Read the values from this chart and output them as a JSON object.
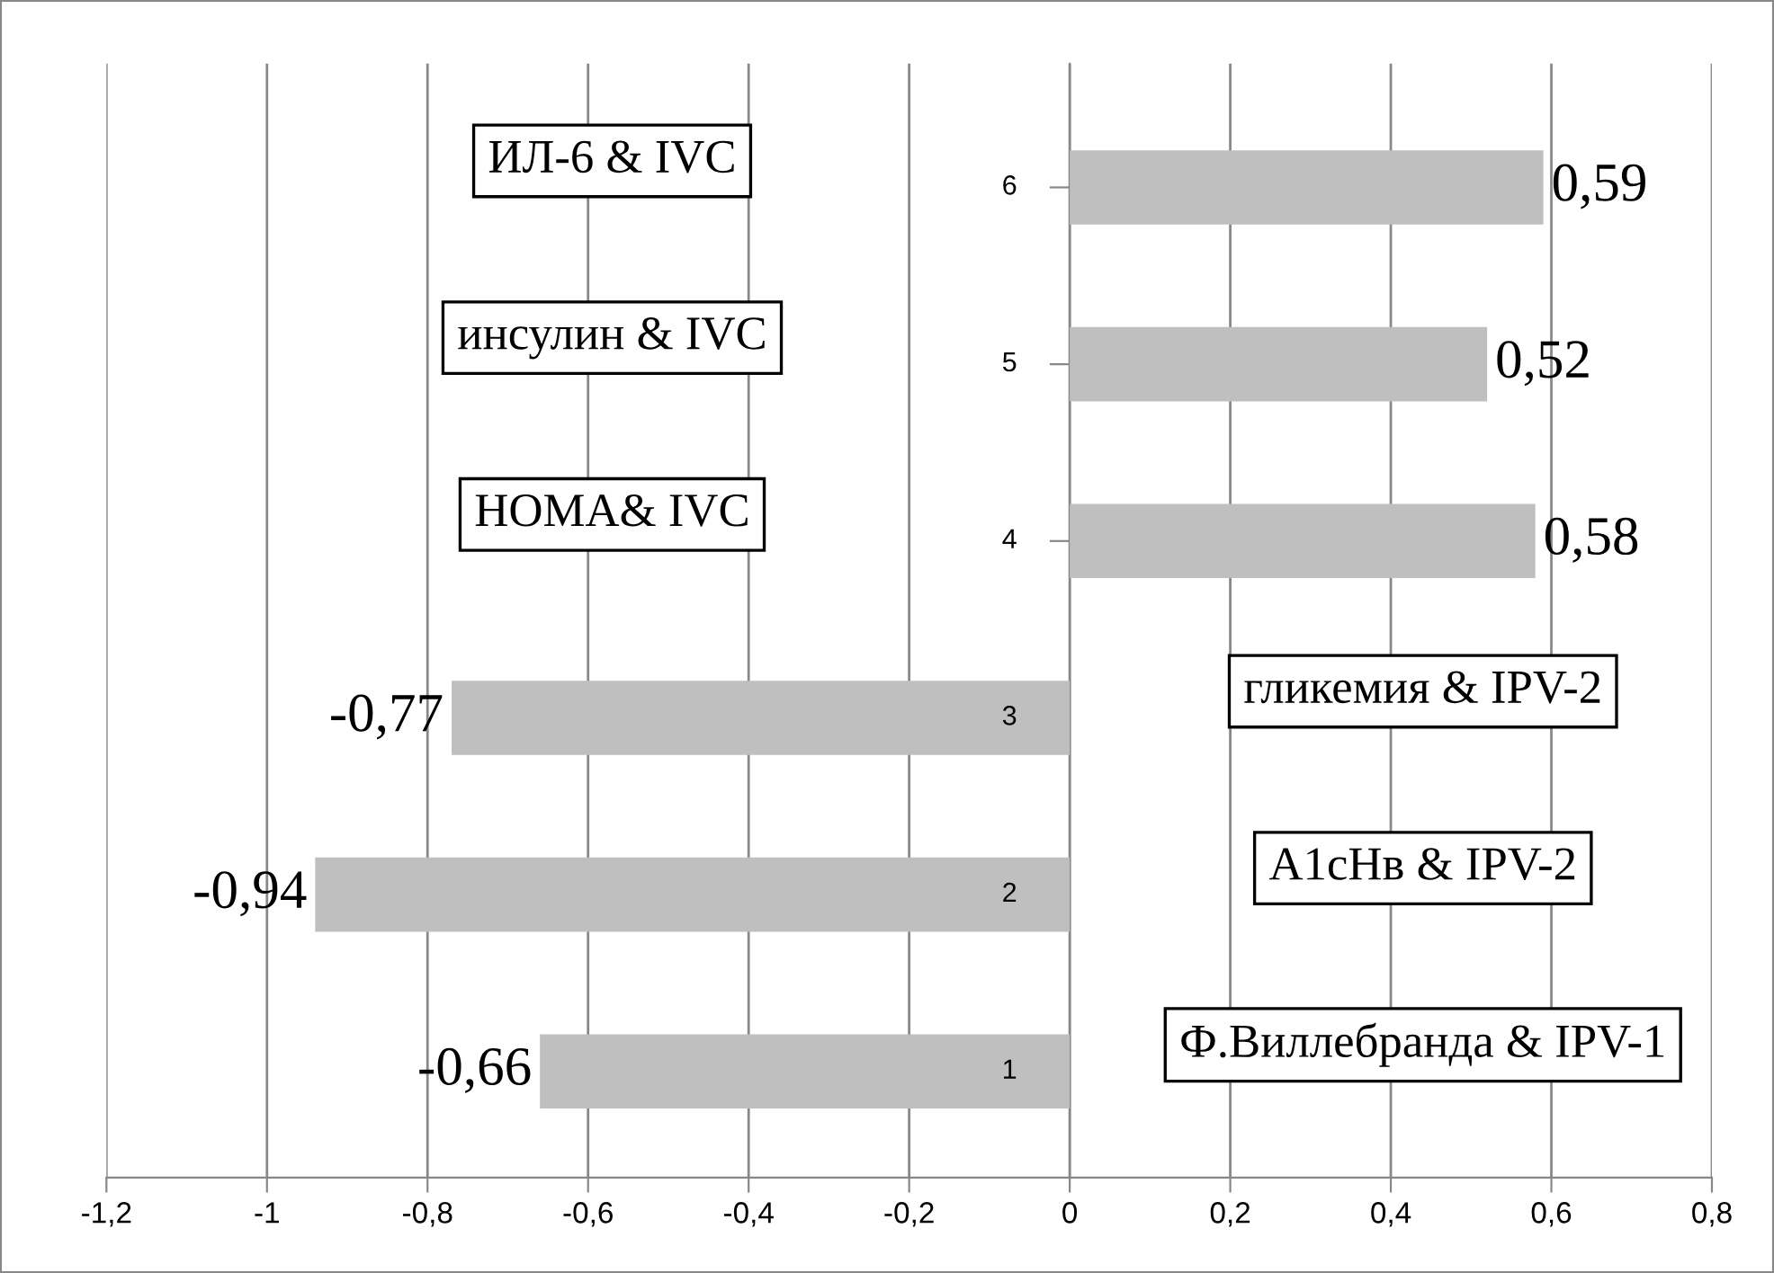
{
  "chart_data": {
    "type": "bar",
    "orientation": "horizontal",
    "categories": [
      "6",
      "5",
      "4",
      "3",
      "2",
      "1"
    ],
    "values": [
      0.59,
      0.52,
      0.58,
      -0.77,
      -0.94,
      -0.66
    ],
    "value_labels": [
      "0,59",
      "0,52",
      "0,58",
      "-0,77",
      "-0,94",
      "-0,66"
    ],
    "color": "#bfbfbf",
    "xlim": [
      -1.2,
      0.8
    ],
    "xticks": [
      {
        "value": -1.2,
        "label": "-1,2"
      },
      {
        "value": -1,
        "label": "-1"
      },
      {
        "value": -0.8,
        "label": "-0,8"
      },
      {
        "value": -0.6,
        "label": "-0,6"
      },
      {
        "value": -0.4,
        "label": "-0,4"
      },
      {
        "value": -0.2,
        "label": "-0,2"
      },
      0,
      {
        "value": 0.2,
        "label": "0,2"
      },
      {
        "value": 0.4,
        "label": "0,4"
      },
      {
        "value": 0.6,
        "label": "0,6"
      },
      {
        "value": 0.8,
        "label": "0,8"
      }
    ],
    "grid": "x",
    "annotations": [
      "ИЛ-6 & IVC",
      "инсулин & IVC",
      "HOMA& IVC",
      "гликемия & IPV-2",
      "A1cHв & IPV-2",
      "Ф.Виллебранда & IPV-1"
    ]
  }
}
